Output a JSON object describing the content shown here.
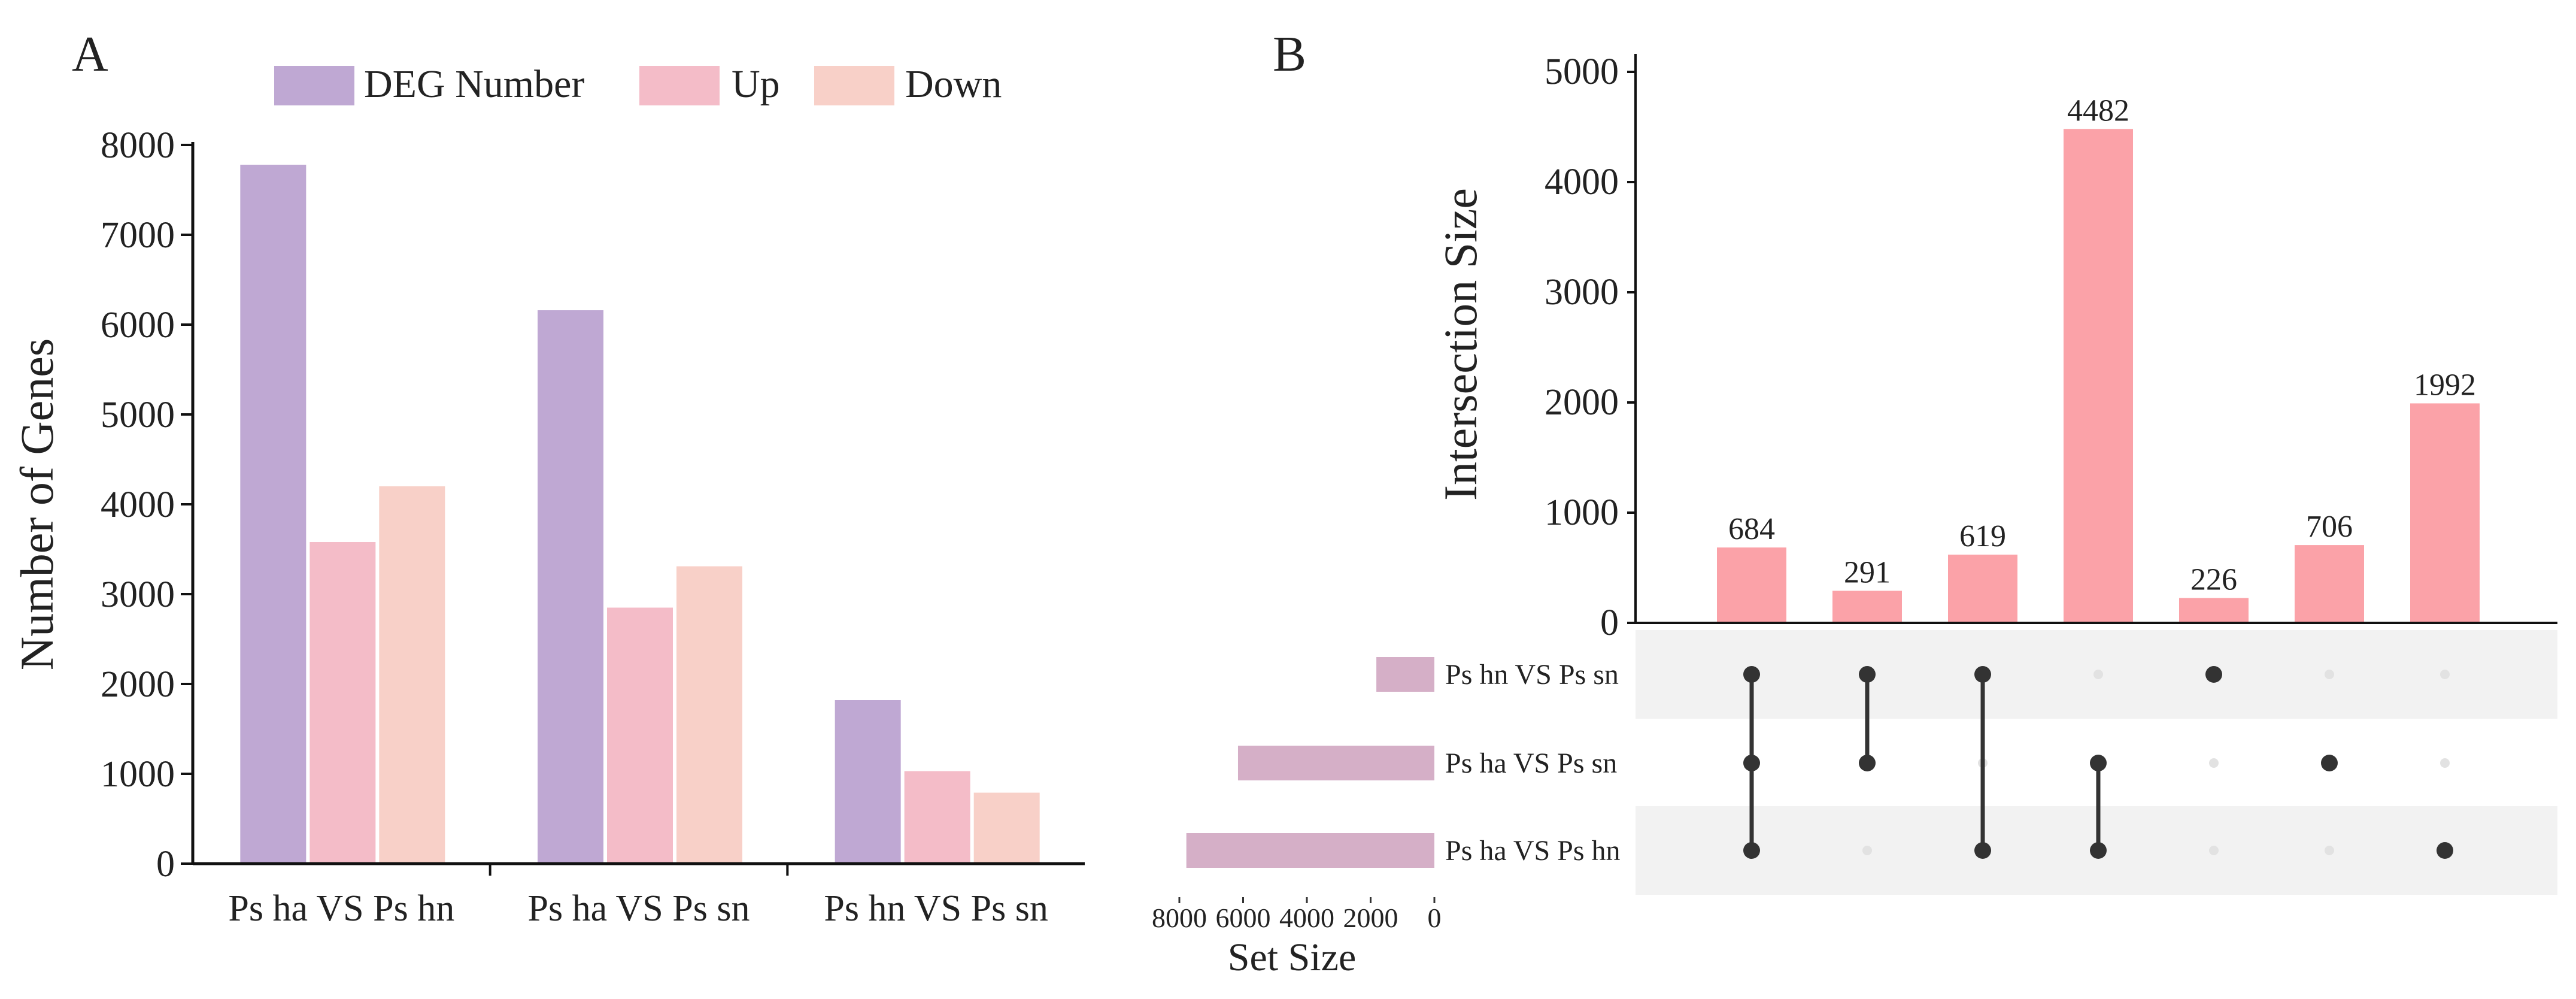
{
  "chart_data": [
    {
      "panel": "A",
      "type": "bar",
      "title": "",
      "xlabel": "",
      "ylabel": "Number of Genes",
      "ylim": [
        0,
        8000
      ],
      "yticks": [
        "0",
        "1000",
        "2000",
        "3000",
        "4000",
        "5000",
        "6000",
        "7000",
        "8000"
      ],
      "categories": [
        "Ps ha VS Ps hn",
        "Ps ha VS Ps sn",
        "Ps hn VS Ps sn"
      ],
      "series": [
        {
          "name": "DEG Number",
          "color": "#bfa8d3",
          "values": [
            7780,
            6160,
            1820
          ]
        },
        {
          "name": "Up",
          "color": "#f4bcc8",
          "values": [
            3580,
            2850,
            1030
          ]
        },
        {
          "name": "Down",
          "color": "#f8d0c8",
          "values": [
            4200,
            3310,
            790
          ]
        }
      ],
      "legend_position": "top"
    },
    {
      "panel": "B",
      "type": "upset",
      "ylabel": "Intersection Size",
      "ylim": [
        0,
        5200
      ],
      "yticks": [
        "0",
        "1000",
        "2000",
        "3000",
        "4000",
        "5000"
      ],
      "bar_color": "#fba2a8",
      "intersections": [
        {
          "value": 684,
          "label": "684",
          "sets": [
            0,
            1,
            2
          ]
        },
        {
          "value": 291,
          "label": "291",
          "sets": [
            0,
            1
          ]
        },
        {
          "value": 619,
          "label": "619",
          "sets": [
            0,
            2
          ]
        },
        {
          "value": 4482,
          "label": "4482",
          "sets": [
            1,
            2
          ]
        },
        {
          "value": 226,
          "label": "226",
          "sets": [
            0
          ]
        },
        {
          "value": 706,
          "label": "706",
          "sets": [
            1
          ]
        },
        {
          "value": 1992,
          "label": "1992",
          "sets": [
            2
          ]
        }
      ],
      "sets": [
        {
          "name": "Ps hn VS Ps sn",
          "size": 1820
        },
        {
          "name": "Ps ha VS Ps sn",
          "size": 6160
        },
        {
          "name": "Ps ha VS Ps hn",
          "size": 7780
        }
      ],
      "set_color": "#d5afc7",
      "set_size_label": "Set Size",
      "set_size_ticks": [
        "8000",
        "6000",
        "4000",
        "2000",
        "0"
      ],
      "set_size_max": 8000
    }
  ],
  "panels": {
    "a": {
      "letter": "A"
    },
    "b": {
      "letter": "B"
    }
  }
}
